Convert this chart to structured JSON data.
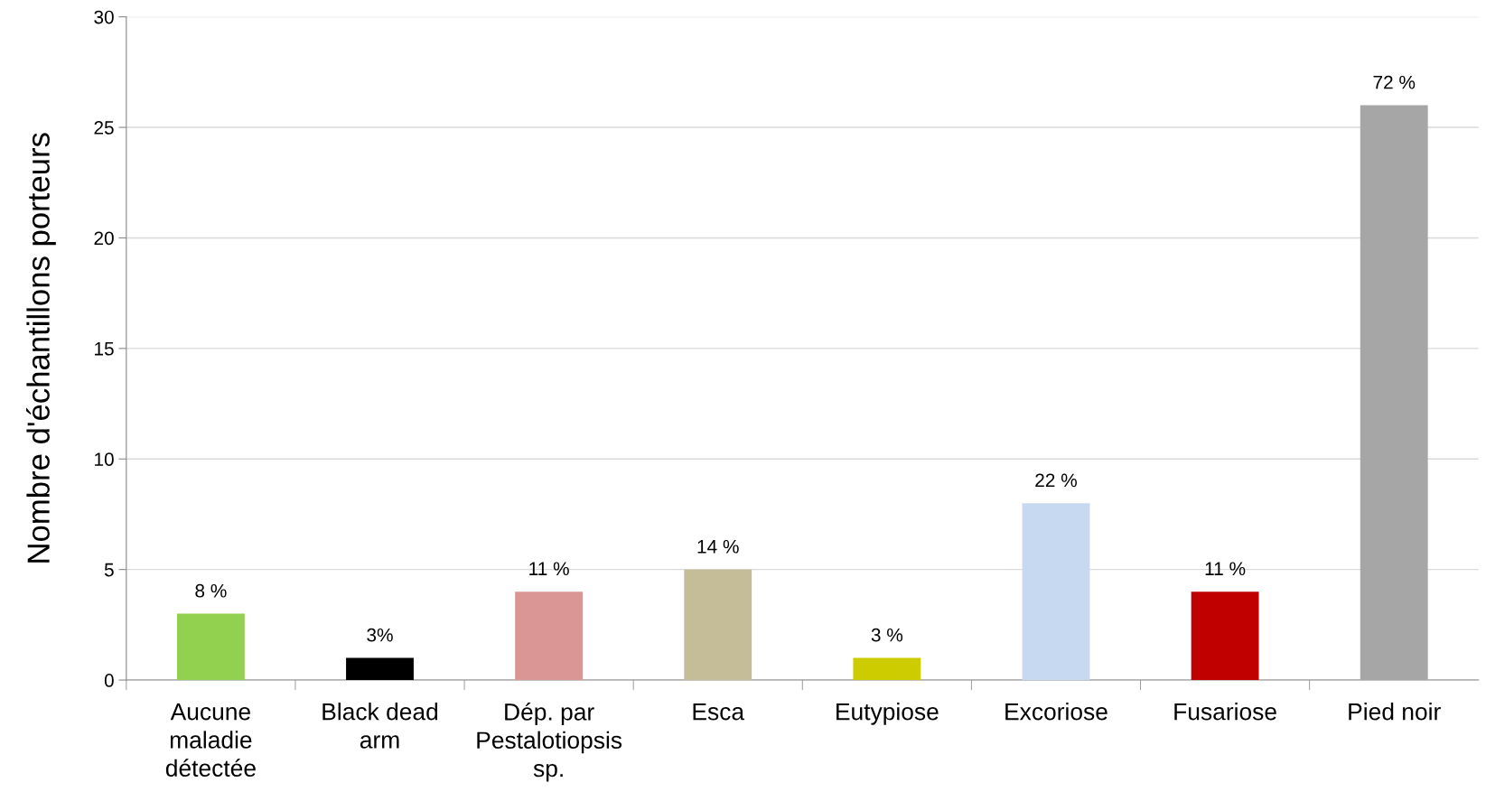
{
  "chart_data": {
    "type": "bar",
    "ylabel": "Nombre d'échantillons porteurs",
    "categories": [
      "Aucune\nmaladie\ndétectée",
      "Black dead\narm",
      "Dép. par\nPestalotiopsis\nsp.",
      "Esca",
      "Eutypiose",
      "Excoriose",
      "Fusariose",
      "Pied noir"
    ],
    "values": [
      3,
      1,
      4,
      5,
      1,
      8,
      4,
      26
    ],
    "colors": [
      "#92d050",
      "#000000",
      "#da9694",
      "#c4bd97",
      "#cccc00",
      "#c6d9f1",
      "#c00000",
      "#a6a6a6"
    ],
    "annotations": [
      {
        "text": "8 %",
        "x": "Aucune\nmaladie\ndétectée",
        "y": 3
      },
      {
        "text": "3%",
        "x": "Black dead\narm",
        "y": 1
      },
      {
        "text": "11 %",
        "x": "Dép. par\nPestalotiopsis\nsp.",
        "y": 4
      },
      {
        "text": "14 %",
        "x": "Esca",
        "y": 5
      },
      {
        "text": "3 %",
        "x": "Eutypiose",
        "y": 1
      },
      {
        "text": "22 %",
        "x": "Excoriose",
        "y": 8
      },
      {
        "text": "11 %",
        "x": "Fusariose",
        "y": 4
      },
      {
        "text": "72 %",
        "x": "Pied noir",
        "y": 26
      }
    ],
    "ylim": [
      0,
      30
    ],
    "yticks": [
      0,
      5,
      10,
      15,
      20,
      25,
      30
    ],
    "grid": "y",
    "legend": false
  }
}
